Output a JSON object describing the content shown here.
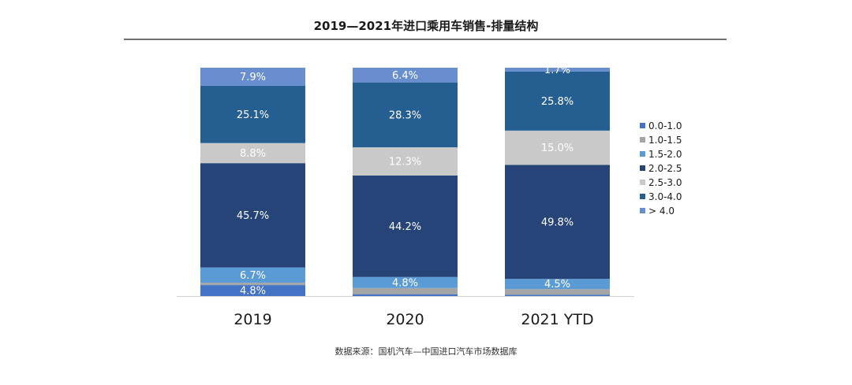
{
  "title": "2019—2021年进口乘用车销售-排量结构",
  "source": "数据来源：国机汽车—中国进口汽车市场数据库",
  "colors": {
    "0.0-1.0": "#4472c4",
    "1.0-1.5": "#a5a5a5",
    "1.5-2.0": "#5b9bd5",
    "2.0-2.5": "#264478",
    "2.5-3.0": "#c9c9c9",
    "3.0-4.0": "#255e91",
    "> 4.0": "#698ed0"
  },
  "chart_data": {
    "type": "bar",
    "stacked": true,
    "percent": true,
    "title": "2019—2021年进口乘用车销售-排量结构",
    "categories": [
      "2019",
      "2020",
      "2021 YTD"
    ],
    "ylim": [
      0,
      100
    ],
    "xlabel": "",
    "ylabel": "",
    "legend_position": "right",
    "grid": false,
    "series": [
      {
        "name": "0.0-1.0",
        "values": [
          4.8,
          0.8,
          0.6
        ],
        "labels": [
          "4.8%",
          "",
          ""
        ]
      },
      {
        "name": "1.0-1.5",
        "values": [
          1.0,
          2.7,
          2.4
        ],
        "labels": [
          "",
          "",
          ""
        ]
      },
      {
        "name": "1.5-2.0",
        "values": [
          6.7,
          4.8,
          4.5
        ],
        "labels": [
          "6.7%",
          "4.8%",
          "4.5%"
        ]
      },
      {
        "name": "2.0-2.5",
        "values": [
          45.7,
          44.2,
          49.8
        ],
        "labels": [
          "45.7%",
          "44.2%",
          "49.8%"
        ]
      },
      {
        "name": "2.5-3.0",
        "values": [
          8.8,
          12.3,
          15.0
        ],
        "labels": [
          "8.8%",
          "12.3%",
          "15.0%"
        ]
      },
      {
        "name": "3.0-4.0",
        "values": [
          25.1,
          28.3,
          25.8
        ],
        "labels": [
          "25.1%",
          "28.3%",
          "25.8%"
        ]
      },
      {
        "name": "> 4.0",
        "values": [
          7.9,
          6.4,
          1.7
        ],
        "labels": [
          "7.9%",
          "6.4%",
          "1.7%"
        ]
      }
    ]
  }
}
